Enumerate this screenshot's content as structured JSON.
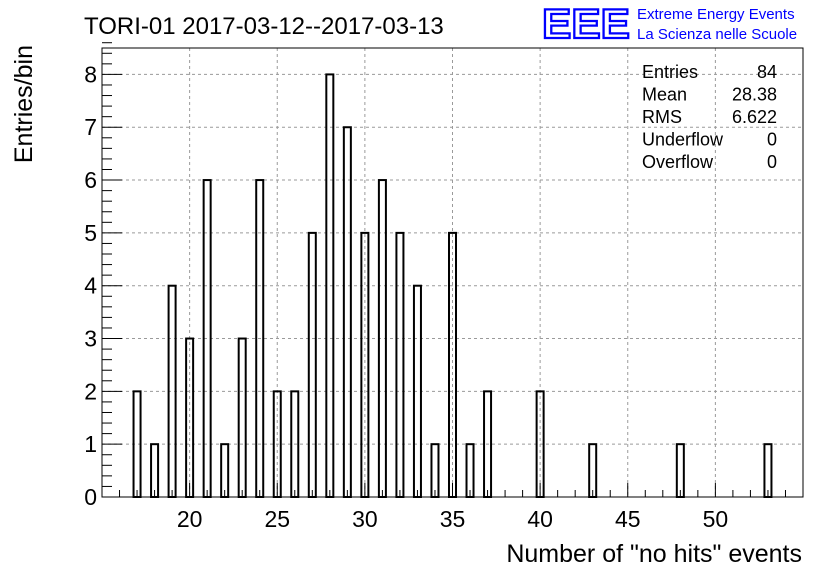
{
  "chart_data": {
    "type": "bar",
    "title": "TORI-01 2017-03-12--2017-03-13",
    "xlabel": "Number of \"no hits\" events",
    "ylabel": "Entries/bin",
    "xlim": [
      15,
      55
    ],
    "ylim": [
      0,
      8.5
    ],
    "x_ticks": [
      20,
      25,
      30,
      35,
      40,
      45,
      50
    ],
    "y_ticks": [
      0,
      1,
      2,
      3,
      4,
      5,
      6,
      7,
      8
    ],
    "grid": true,
    "bins": [
      {
        "x": 17,
        "count": 2
      },
      {
        "x": 18,
        "count": 1
      },
      {
        "x": 19,
        "count": 4
      },
      {
        "x": 20,
        "count": 3
      },
      {
        "x": 21,
        "count": 6
      },
      {
        "x": 22,
        "count": 1
      },
      {
        "x": 23,
        "count": 3
      },
      {
        "x": 24,
        "count": 6
      },
      {
        "x": 25,
        "count": 2
      },
      {
        "x": 26,
        "count": 2
      },
      {
        "x": 27,
        "count": 5
      },
      {
        "x": 28,
        "count": 8
      },
      {
        "x": 29,
        "count": 7
      },
      {
        "x": 30,
        "count": 5
      },
      {
        "x": 31,
        "count": 6
      },
      {
        "x": 32,
        "count": 5
      },
      {
        "x": 33,
        "count": 4
      },
      {
        "x": 34,
        "count": 1
      },
      {
        "x": 35,
        "count": 5
      },
      {
        "x": 36,
        "count": 1
      },
      {
        "x": 37,
        "count": 2
      },
      {
        "x": 40,
        "count": 2
      },
      {
        "x": 43,
        "count": 1
      },
      {
        "x": 48,
        "count": 1
      },
      {
        "x": 53,
        "count": 1
      }
    ],
    "stats": [
      {
        "label": "Entries",
        "value": "84"
      },
      {
        "label": "Mean",
        "value": "28.38"
      },
      {
        "label": "RMS",
        "value": "6.622"
      },
      {
        "label": "Underflow",
        "value": "0"
      },
      {
        "label": "Overflow",
        "value": "0"
      }
    ],
    "logo": {
      "text": "EEE",
      "line1": "Extreme Energy Events",
      "line2": "La Scienza nelle Scuole",
      "color": "#0000ff"
    }
  }
}
